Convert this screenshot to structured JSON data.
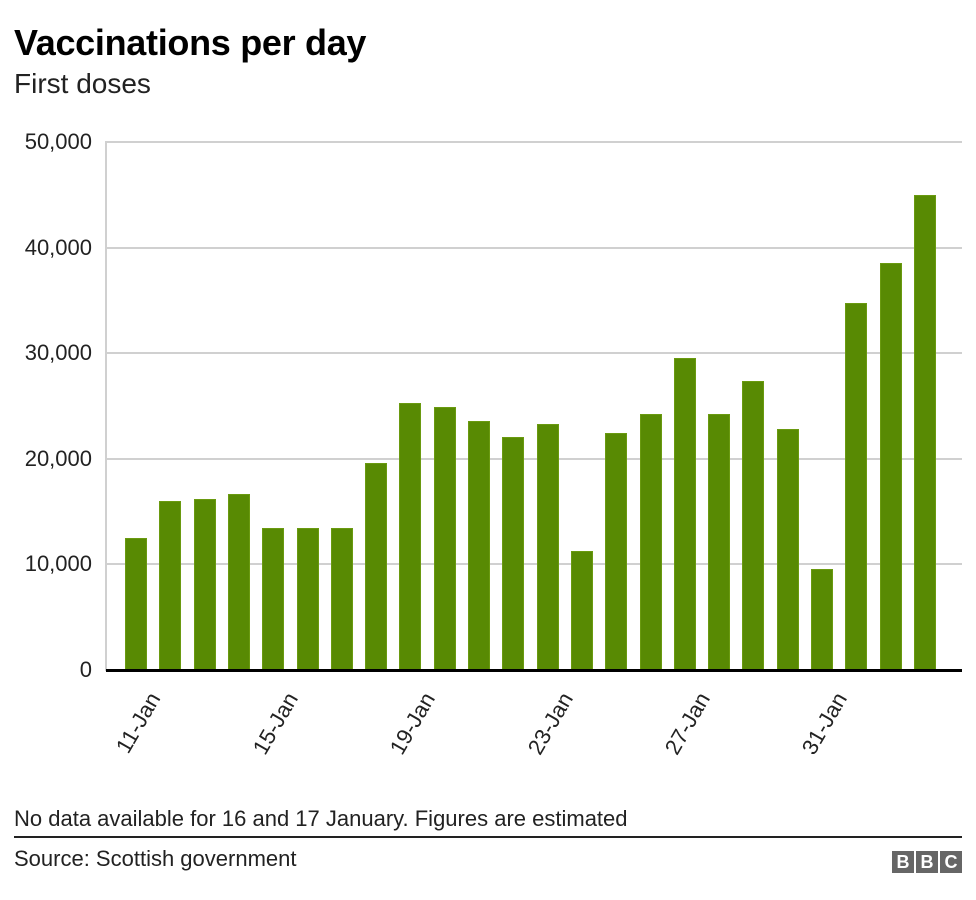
{
  "header": {
    "title": "Vaccinations per day",
    "subtitle": "First doses"
  },
  "footer": {
    "note": "No data available for 16 and 17 January. Figures are estimated",
    "source": "Source: Scottish government",
    "logo_letters": [
      "B",
      "B",
      "C"
    ]
  },
  "colors": {
    "bar": "#588a03",
    "grid": "#d0d0d0",
    "axis": "#000000",
    "logo_bg": "#666666"
  },
  "axes": {
    "y_ticks": [
      "50,000",
      "40,000",
      "30,000",
      "20,000",
      "10,000",
      "0"
    ],
    "x_tick_labels": [
      "11-Jan",
      "15-Jan",
      "19-Jan",
      "23-Jan",
      "27-Jan",
      "31-Jan"
    ]
  },
  "chart_data": {
    "type": "bar",
    "title": "Vaccinations per day",
    "subtitle": "First doses",
    "xlabel": "",
    "ylabel": "",
    "ylim": [
      0,
      50000
    ],
    "y_ticks": [
      0,
      10000,
      20000,
      30000,
      40000,
      50000
    ],
    "grid": true,
    "legend": null,
    "categories": [
      "11-Jan",
      "12-Jan",
      "13-Jan",
      "14-Jan",
      "15-Jan",
      "16-Jan",
      "17-Jan",
      "18-Jan",
      "19-Jan",
      "20-Jan",
      "21-Jan",
      "22-Jan",
      "23-Jan",
      "24-Jan",
      "25-Jan",
      "26-Jan",
      "27-Jan",
      "28-Jan",
      "29-Jan",
      "30-Jan",
      "31-Jan",
      "1-Feb",
      "2-Feb",
      "3-Feb"
    ],
    "shown_tick_labels": [
      "11-Jan",
      "15-Jan",
      "19-Jan",
      "23-Jan",
      "27-Jan",
      "31-Jan"
    ],
    "values": [
      12500,
      16000,
      16200,
      16700,
      13400,
      13400,
      13400,
      19600,
      25300,
      24900,
      23600,
      22100,
      23300,
      11300,
      22400,
      24200,
      29500,
      24200,
      27400,
      22800,
      9600,
      34800,
      38500,
      45000
    ],
    "annotations": [
      "No data available for 16 and 17 January. Figures are estimated"
    ],
    "source": "Scottish government"
  }
}
